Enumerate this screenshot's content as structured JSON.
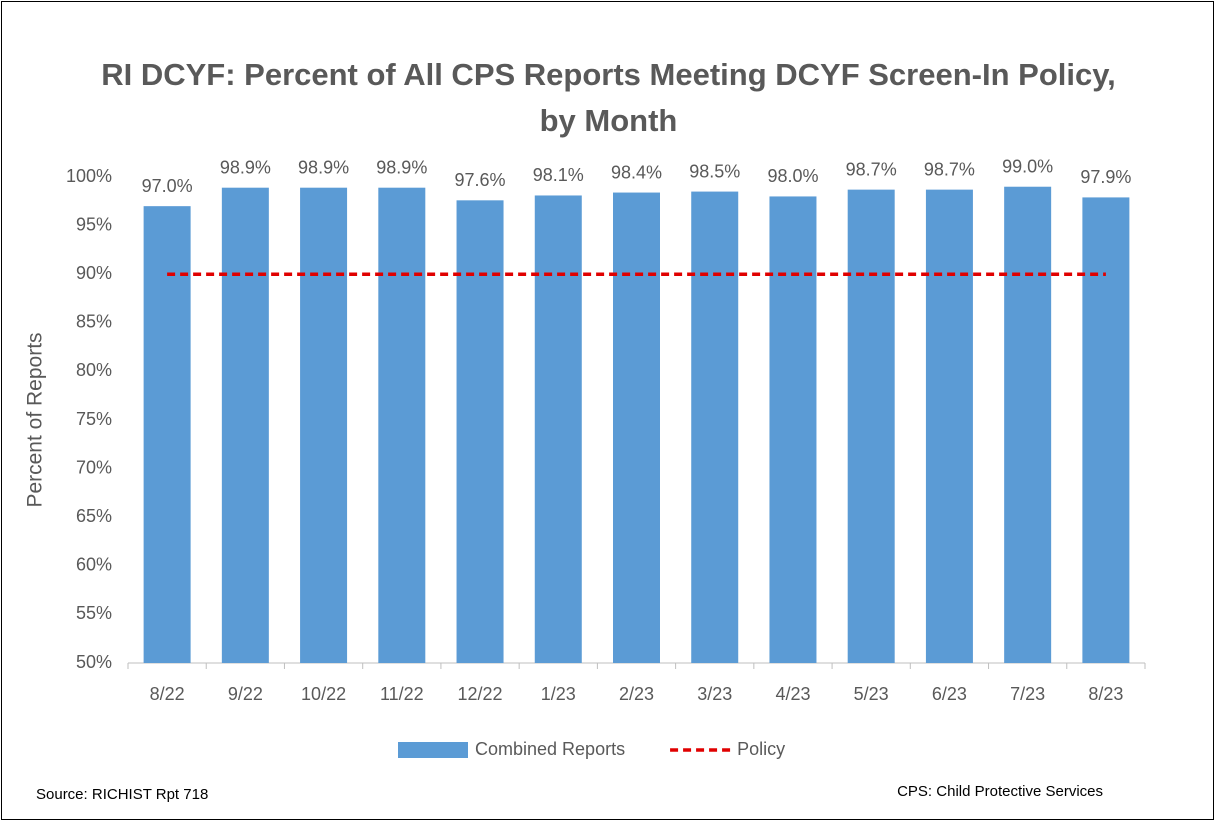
{
  "chart_data": {
    "type": "bar",
    "title": "RI DCYF: Percent of All CPS Reports Meeting DCYF Screen-In Policy, by Month",
    "y_label": "Percent of Reports",
    "categories": [
      "8/22",
      "9/22",
      "10/22",
      "11/22",
      "12/22",
      "1/23",
      "2/23",
      "3/23",
      "4/23",
      "5/23",
      "6/23",
      "7/23",
      "8/23"
    ],
    "series": [
      {
        "name": "Combined Reports",
        "type": "bar",
        "color": "#5b9bd5",
        "values": [
          97.0,
          98.9,
          98.9,
          98.9,
          97.6,
          98.1,
          98.4,
          98.5,
          98.0,
          98.7,
          98.7,
          99.0,
          97.9
        ],
        "value_labels": [
          "97.0%",
          "98.9%",
          "98.9%",
          "98.9%",
          "97.6%",
          "98.1%",
          "98.4%",
          "98.5%",
          "98.0%",
          "98.7%",
          "98.7%",
          "99.0%",
          "97.9%"
        ]
      },
      {
        "name": "Policy",
        "type": "line",
        "color": "#e00000",
        "dashed": true,
        "values": [
          90,
          90,
          90,
          90,
          90,
          90,
          90,
          90,
          90,
          90,
          90,
          90,
          90
        ]
      }
    ],
    "ylim": [
      50,
      100
    ],
    "yticks": [
      {
        "value": 50,
        "label": "50%"
      },
      {
        "value": 55,
        "label": "55%"
      },
      {
        "value": 60,
        "label": "60%"
      },
      {
        "value": 65,
        "label": "65%"
      },
      {
        "value": 70,
        "label": "70%"
      },
      {
        "value": 75,
        "label": "75%"
      },
      {
        "value": 80,
        "label": "80%"
      },
      {
        "value": 85,
        "label": "85%"
      },
      {
        "value": 90,
        "label": "90%"
      },
      {
        "value": 95,
        "label": "95%"
      },
      {
        "value": 100,
        "label": "100%"
      }
    ],
    "grid": false,
    "legend": "bottom",
    "annotations": [
      "Source: RICHIST Rpt 718",
      "CPS: Child Protective Services"
    ]
  }
}
